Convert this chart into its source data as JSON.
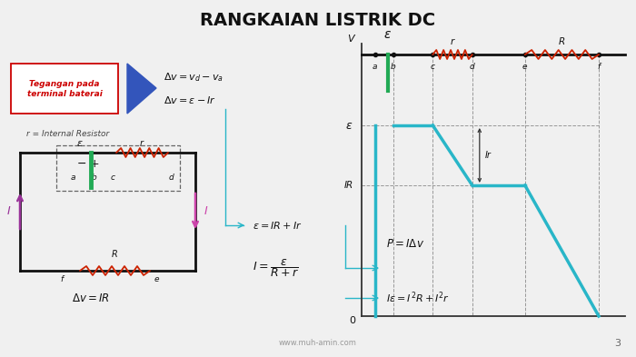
{
  "title": "RANGKAIAN LISTRIK DC",
  "title_fontsize": 14,
  "bg_color": "#f0f0f0",
  "page_num": "3",
  "watermark": "www.muh-amin.com",
  "box_label": "Tegangan pada\nterminal baterai",
  "box_color_text": "#cc0000",
  "box_border_color": "#cc0000",
  "eq1a": "$\\Delta v = v_d - v_a$",
  "eq1b": "$\\Delta v = \\varepsilon - Ir$",
  "eq2a": "$\\varepsilon = IR + Ir$",
  "eq2b": "$I = \\dfrac{\\varepsilon}{R + r}$",
  "eq3a": "$P = I\\Delta v$",
  "eq3b": "$I\\varepsilon = I^2R + I^2r$",
  "eq_delta_v": "$\\Delta v = IR$",
  "cyan_color": "#29b6c8",
  "red_color": "#cc2200",
  "green_color": "#22aa55",
  "purple_color": "#993399",
  "blue_arrow_color": "#3355cc",
  "dark_color": "#222222"
}
